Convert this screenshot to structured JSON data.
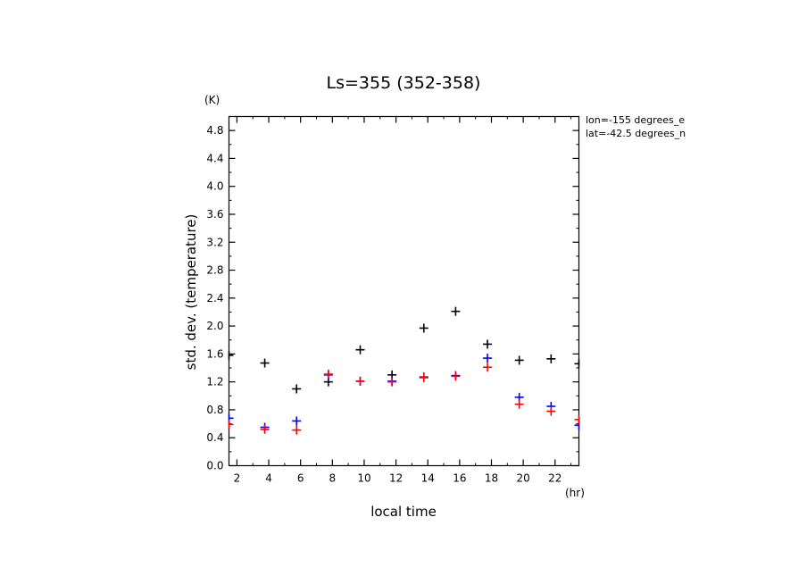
{
  "chart_data": {
    "type": "scatter",
    "title": "Ls=355 (352-358)",
    "xlabel": "local time",
    "ylabel": "std. dev. (temperature)",
    "xunit": "(hr)",
    "yunit": "(K)",
    "xlim": [
      1.5,
      23.5
    ],
    "ylim": [
      0.0,
      5.0
    ],
    "xticks": [
      2,
      4,
      6,
      8,
      10,
      12,
      14,
      16,
      18,
      20,
      22
    ],
    "yticks": [
      0.0,
      0.4,
      0.8,
      1.2,
      1.6,
      2.0,
      2.4,
      2.8,
      3.2,
      3.6,
      4.0,
      4.4,
      4.8
    ],
    "ytick_labels": [
      "0.0",
      "0.4",
      "0.8",
      "1.2",
      "1.6",
      "2.0",
      "2.4",
      "2.8",
      "3.2",
      "3.6",
      "4.0",
      "4.4",
      "4.8"
    ],
    "annotations": [
      "lon=-155 degrees_e",
      "lat=-42.5 degrees_n"
    ],
    "marker": "+",
    "series": [
      {
        "color": "#000000",
        "x": [
          1.5,
          3.75,
          5.75,
          7.75,
          9.75,
          11.75,
          13.75,
          15.75,
          17.75,
          19.75,
          21.75,
          23.5
        ],
        "y": [
          1.58,
          1.47,
          1.1,
          1.2,
          1.66,
          1.3,
          1.97,
          2.21,
          1.74,
          1.51,
          1.53,
          1.46
        ]
      },
      {
        "color": "#0000ff",
        "x": [
          1.5,
          3.75,
          5.75,
          7.75,
          9.75,
          11.75,
          13.75,
          15.75,
          17.75,
          19.75,
          21.75,
          23.5
        ],
        "y": [
          0.68,
          0.55,
          0.64,
          1.3,
          1.21,
          1.21,
          1.27,
          1.29,
          1.54,
          0.98,
          0.85,
          0.58
        ]
      },
      {
        "color": "#ff0000",
        "x": [
          1.5,
          3.75,
          5.75,
          7.75,
          9.75,
          11.75,
          13.75,
          15.75,
          17.75,
          19.75,
          21.75,
          23.5
        ],
        "y": [
          0.59,
          0.52,
          0.51,
          1.31,
          1.21,
          1.2,
          1.26,
          1.28,
          1.41,
          0.88,
          0.78,
          0.66
        ]
      }
    ]
  }
}
